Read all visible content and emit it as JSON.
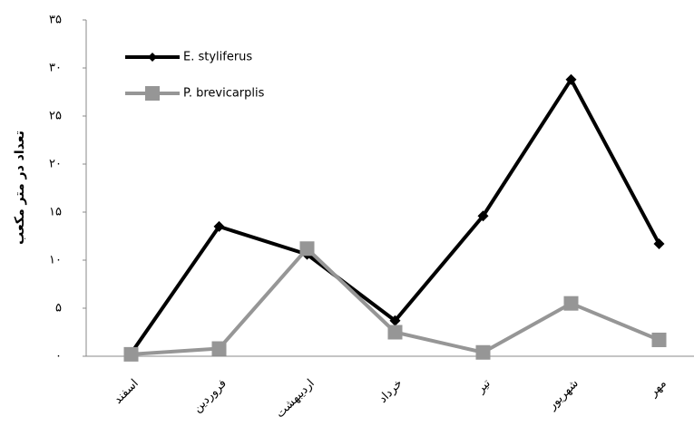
{
  "chart_data": {
    "type": "line",
    "y_label": "تعداد در متر مکعب",
    "categories": [
      "اسفند",
      "فروردین",
      "اردیبهشت",
      "خرداد",
      "تیر",
      "شهریور",
      "مهر"
    ],
    "series": [
      {
        "name": "E. styliferus",
        "color": "#000000",
        "marker": "diamond",
        "values": [
          0.3,
          13.5,
          10.6,
          3.7,
          14.6,
          28.8,
          11.7
        ]
      },
      {
        "name": "P. brevicarplis",
        "color": "#969696",
        "marker": "square",
        "values": [
          0.2,
          0.8,
          11.2,
          2.5,
          0.4,
          5.5,
          1.7
        ]
      }
    ],
    "ylim": [
      0,
      35
    ],
    "yticks": [
      {
        "value": 0,
        "label": "۰"
      },
      {
        "value": 5,
        "label": "۵"
      },
      {
        "value": 10,
        "label": "۱۰"
      },
      {
        "value": 15,
        "label": "۱۵"
      },
      {
        "value": 20,
        "label": "۲۰"
      },
      {
        "value": 25,
        "label": "۲۵"
      },
      {
        "value": 30,
        "label": "۳۰"
      },
      {
        "value": 35,
        "label": "۳۵"
      }
    ],
    "grid": false,
    "legend": "top-left"
  }
}
